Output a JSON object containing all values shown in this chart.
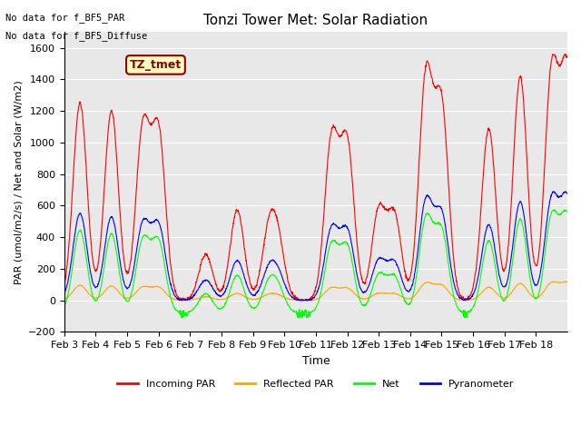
{
  "title": "Tonzi Tower Met: Solar Radiation",
  "xlabel": "Time",
  "ylabel": "PAR (umol/m2/s) / Net and Solar (W/m2)",
  "ylim": [
    -200,
    1700
  ],
  "xtick_labels": [
    "Feb 3",
    "Feb 4",
    "Feb 5",
    "Feb 6",
    "Feb 7",
    "Feb 8",
    "Feb 9",
    "Feb 10",
    "Feb 11",
    "Feb 12",
    "Feb 13",
    "Feb 14",
    "Feb 15",
    "Feb 16",
    "Feb 17",
    "Feb 18"
  ],
  "legend_entries": [
    "Incoming PAR",
    "Reflected PAR",
    "Net",
    "Pyranometer"
  ],
  "legend_colors": [
    "red",
    "orange",
    "lime",
    "blue"
  ],
  "annotation_line1": "No data for f_BF5_PAR",
  "annotation_line2": "No data for f_BF5_Diffuse",
  "label_text": "TZ_tmet",
  "label_bgcolor": "#ffffc0",
  "label_edgecolor": "darkred",
  "label_textcolor": "darkred",
  "background_color": "#e8e8e8",
  "n_days": 16
}
